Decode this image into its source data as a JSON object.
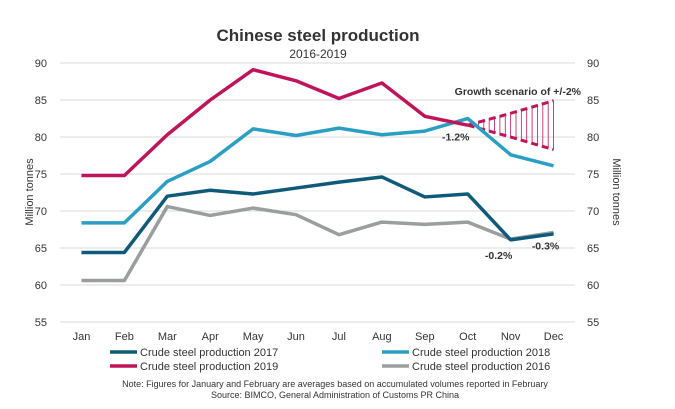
{
  "chart_data": {
    "type": "line",
    "title": "Chinese steel production",
    "subtitle": "2016-2019",
    "ylabel_left": "Million tonnes",
    "ylabel_right": "Million tonnes",
    "ylim": [
      55,
      90
    ],
    "yticks": [
      55,
      60,
      65,
      70,
      75,
      80,
      85,
      90
    ],
    "grid": true,
    "legend_placement": "bottom",
    "categories": [
      "Jan",
      "Feb",
      "Mar",
      "Apr",
      "May",
      "Jun",
      "Jul",
      "Aug",
      "Sep",
      "Oct",
      "Nov",
      "Dec"
    ],
    "series": [
      {
        "name": "Crude steel production 2017",
        "color": "#0f5a7a",
        "values": [
          64.4,
          64.4,
          72.0,
          72.8,
          72.3,
          73.1,
          73.9,
          74.6,
          71.9,
          72.3,
          66.1,
          66.9
        ]
      },
      {
        "name": "Crude steel production 2018",
        "color": "#2a9fc3",
        "values": [
          68.4,
          68.4,
          74.0,
          76.7,
          81.1,
          80.2,
          81.2,
          80.3,
          80.8,
          82.5,
          77.6,
          76.1
        ]
      },
      {
        "name": "Crude steel production 2019",
        "color": "#c0145a",
        "values": [
          74.8,
          74.8,
          80.3,
          85.0,
          89.1,
          87.6,
          85.2,
          87.3,
          82.8,
          81.6,
          null,
          null
        ]
      },
      {
        "name": "Crude steel production 2016",
        "color": "#9a9e9f",
        "values": [
          60.6,
          60.6,
          70.6,
          69.4,
          70.4,
          69.5,
          66.8,
          68.5,
          68.2,
          68.5,
          66.2,
          67.1
        ]
      }
    ],
    "scenario": {
      "label": "Growth scenario of +/-2%",
      "color": "#c0145a",
      "categories": [
        "Oct",
        "Nov",
        "Dec"
      ],
      "upper": [
        81.6,
        83.2,
        84.9
      ],
      "lower": [
        81.6,
        80.0,
        78.3
      ]
    },
    "annotations": [
      {
        "text": "-1.2%",
        "category": "Oct",
        "y": 79.5
      },
      {
        "text": "-0.2%",
        "category": "Nov",
        "y": 63.5
      },
      {
        "text": "-0.3%",
        "category": "Dec",
        "y": 64.8
      }
    ],
    "notes": [
      "Note: Figures for January and February are averages based on accumulated volumes reported in February",
      "Source: BIMCO, General Administration  of Customs PR China"
    ]
  }
}
